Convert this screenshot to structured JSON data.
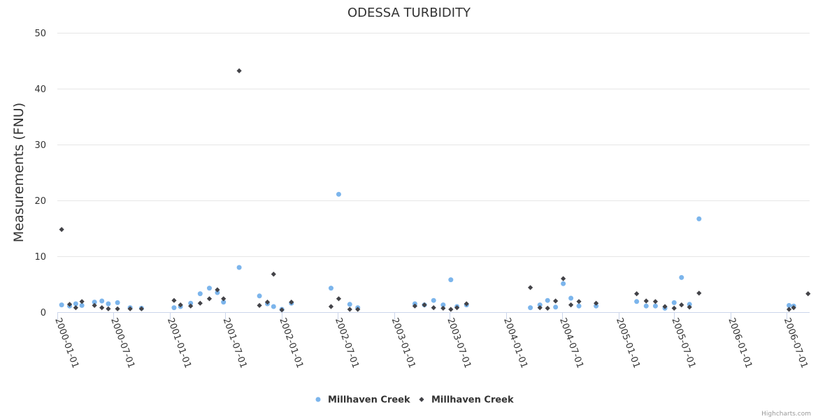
{
  "colors": {
    "series_blue": "#7cb5ec",
    "series_dark": "#434348",
    "grid": "#e6e6e6",
    "axis_line": "#ccd6eb"
  },
  "credit": "Highcharts.com",
  "chart_data": {
    "type": "scatter",
    "title": "ODESSA TURBIDITY",
    "xlabel": "",
    "ylabel": "Measurements (FNU)",
    "x_axis_type": "datetime",
    "xlim": [
      "2000-01-01",
      "2006-09-15"
    ],
    "ylim": [
      0,
      50
    ],
    "y_ticks": [
      0,
      10,
      20,
      30,
      40,
      50
    ],
    "x_tick_labels": [
      "2000-01-01",
      "2000-07-01",
      "2001-01-01",
      "2001-07-01",
      "2002-01-01",
      "2002-07-01",
      "2003-01-01",
      "2003-07-01",
      "2004-01-01",
      "2004-07-01",
      "2005-01-01",
      "2005-07-01",
      "2006-01-01",
      "2006-07-01"
    ],
    "grid": true,
    "legend_position": "bottom-center",
    "series": [
      {
        "name": "Millhaven Creek",
        "marker": "circle",
        "color": "#7cb5ec",
        "points": [
          [
            "2000-01-15",
            1.3
          ],
          [
            "2000-02-10",
            1.1
          ],
          [
            "2000-03-01",
            1.5
          ],
          [
            "2000-03-21",
            1.2
          ],
          [
            "2000-05-01",
            1.8
          ],
          [
            "2000-05-25",
            2.0
          ],
          [
            "2000-06-15",
            1.5
          ],
          [
            "2000-07-15",
            1.7
          ],
          [
            "2000-08-25",
            0.8
          ],
          [
            "2000-10-01",
            0.7
          ],
          [
            "2001-01-15",
            0.8
          ],
          [
            "2001-02-05",
            1.0
          ],
          [
            "2001-03-10",
            1.6
          ],
          [
            "2001-04-10",
            3.3
          ],
          [
            "2001-05-10",
            4.3
          ],
          [
            "2001-06-05",
            3.5
          ],
          [
            "2001-06-25",
            1.8
          ],
          [
            "2001-08-15",
            8.0
          ],
          [
            "2001-10-20",
            2.9
          ],
          [
            "2001-11-15",
            1.5
          ],
          [
            "2001-12-05",
            1.0
          ],
          [
            "2002-01-01",
            0.5
          ],
          [
            "2002-02-01",
            1.6
          ],
          [
            "2002-06-10",
            4.3
          ],
          [
            "2002-07-05",
            21.1
          ],
          [
            "2002-08-10",
            1.4
          ],
          [
            "2002-09-05",
            0.8
          ],
          [
            "2003-03-10",
            1.5
          ],
          [
            "2003-04-10",
            1.3
          ],
          [
            "2003-05-10",
            2.1
          ],
          [
            "2003-06-10",
            1.3
          ],
          [
            "2003-07-05",
            5.8
          ],
          [
            "2003-07-25",
            1.0
          ],
          [
            "2003-08-25",
            1.3
          ],
          [
            "2004-03-20",
            0.8
          ],
          [
            "2004-04-20",
            1.3
          ],
          [
            "2004-05-15",
            2.1
          ],
          [
            "2004-06-10",
            0.9
          ],
          [
            "2004-07-05",
            5.1
          ],
          [
            "2004-07-30",
            2.5
          ],
          [
            "2004-08-25",
            1.1
          ],
          [
            "2004-10-20",
            1.1
          ],
          [
            "2005-03-01",
            1.9
          ],
          [
            "2005-04-01",
            1.1
          ],
          [
            "2005-05-01",
            1.1
          ],
          [
            "2005-06-01",
            0.7
          ],
          [
            "2005-07-01",
            1.7
          ],
          [
            "2005-07-25",
            6.2
          ],
          [
            "2005-08-20",
            1.4
          ],
          [
            "2005-09-20",
            16.7
          ],
          [
            "2006-07-10",
            1.2
          ],
          [
            "2006-07-25",
            1.1
          ]
        ]
      },
      {
        "name": "Millhaven Creek",
        "marker": "diamond",
        "color": "#434348",
        "points": [
          [
            "2000-01-15",
            14.8
          ],
          [
            "2000-02-10",
            1.4
          ],
          [
            "2000-03-01",
            0.8
          ],
          [
            "2000-03-21",
            1.9
          ],
          [
            "2000-05-01",
            1.2
          ],
          [
            "2000-05-25",
            0.8
          ],
          [
            "2000-06-15",
            0.6
          ],
          [
            "2000-07-15",
            0.6
          ],
          [
            "2000-08-25",
            0.6
          ],
          [
            "2000-10-01",
            0.6
          ],
          [
            "2001-01-15",
            2.1
          ],
          [
            "2001-02-05",
            1.3
          ],
          [
            "2001-03-10",
            1.1
          ],
          [
            "2001-04-10",
            1.6
          ],
          [
            "2001-05-10",
            2.4
          ],
          [
            "2001-06-05",
            4.0
          ],
          [
            "2001-06-25",
            2.4
          ],
          [
            "2001-08-15",
            43.2
          ],
          [
            "2001-10-20",
            1.2
          ],
          [
            "2001-11-15",
            1.8
          ],
          [
            "2001-12-05",
            6.8
          ],
          [
            "2002-01-01",
            0.4
          ],
          [
            "2002-02-01",
            1.8
          ],
          [
            "2002-06-10",
            1.0
          ],
          [
            "2002-07-05",
            2.4
          ],
          [
            "2002-08-10",
            0.5
          ],
          [
            "2002-09-05",
            0.5
          ],
          [
            "2003-03-10",
            1.1
          ],
          [
            "2003-04-10",
            1.3
          ],
          [
            "2003-05-10",
            0.8
          ],
          [
            "2003-06-10",
            0.7
          ],
          [
            "2003-07-05",
            0.5
          ],
          [
            "2003-07-25",
            0.8
          ],
          [
            "2003-08-25",
            1.5
          ],
          [
            "2004-03-20",
            4.4
          ],
          [
            "2004-04-20",
            0.8
          ],
          [
            "2004-05-15",
            0.7
          ],
          [
            "2004-06-10",
            2.0
          ],
          [
            "2004-07-05",
            6.0
          ],
          [
            "2004-07-30",
            1.3
          ],
          [
            "2004-08-25",
            1.9
          ],
          [
            "2004-10-20",
            1.6
          ],
          [
            "2005-03-01",
            3.3
          ],
          [
            "2005-04-01",
            2.0
          ],
          [
            "2005-05-01",
            1.9
          ],
          [
            "2005-06-01",
            1.0
          ],
          [
            "2005-07-01",
            0.7
          ],
          [
            "2005-07-25",
            1.3
          ],
          [
            "2005-08-20",
            0.9
          ],
          [
            "2005-09-20",
            3.4
          ],
          [
            "2006-07-10",
            0.5
          ],
          [
            "2006-07-25",
            0.8
          ],
          [
            "2006-09-10",
            3.3
          ]
        ]
      }
    ]
  }
}
